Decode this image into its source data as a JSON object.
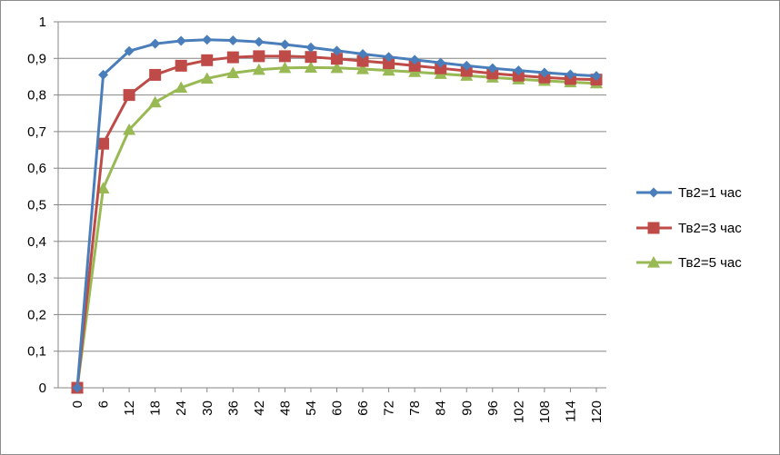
{
  "chart_data": {
    "type": "line",
    "title": "",
    "xlabel": "",
    "ylabel": "",
    "x": [
      0,
      6,
      12,
      18,
      24,
      30,
      36,
      42,
      48,
      54,
      60,
      66,
      72,
      78,
      84,
      90,
      96,
      102,
      108,
      114,
      120
    ],
    "x_tick_labels": [
      "0",
      "6",
      "12",
      "18",
      "24",
      "30",
      "36",
      "42",
      "48",
      "54",
      "60",
      "66",
      "72",
      "78",
      "84",
      "90",
      "96",
      "102",
      "108",
      "114",
      "120"
    ],
    "ylim": [
      0,
      1
    ],
    "y_ticks": [
      0,
      0.1,
      0.2,
      0.3,
      0.4,
      0.5,
      0.6,
      0.7,
      0.8,
      0.9,
      1
    ],
    "y_tick_labels": [
      "0",
      "0,1",
      "0,2",
      "0,3",
      "0,4",
      "0,5",
      "0,6",
      "0,7",
      "0,8",
      "0,9",
      "1"
    ],
    "grid": "horizontal",
    "legend_position": "right",
    "series": [
      {
        "name": "Тв2=1 час",
        "color": "#4a7ebb",
        "marker": "diamond",
        "values": [
          0,
          0.855,
          0.92,
          0.94,
          0.948,
          0.951,
          0.949,
          0.945,
          0.938,
          0.93,
          0.921,
          0.912,
          0.904,
          0.896,
          0.888,
          0.88,
          0.873,
          0.867,
          0.861,
          0.856,
          0.852
        ]
      },
      {
        "name": "Тв2=3 час",
        "color": "#be4b48",
        "marker": "square",
        "values": [
          0,
          0.667,
          0.8,
          0.855,
          0.88,
          0.895,
          0.903,
          0.906,
          0.906,
          0.904,
          0.899,
          0.893,
          0.887,
          0.88,
          0.873,
          0.866,
          0.859,
          0.853,
          0.848,
          0.844,
          0.842
        ]
      },
      {
        "name": "Тв2=5 час",
        "color": "#98b954",
        "marker": "triangle",
        "values": [
          0,
          0.545,
          0.705,
          0.78,
          0.82,
          0.845,
          0.86,
          0.869,
          0.874,
          0.875,
          0.874,
          0.871,
          0.867,
          0.863,
          0.858,
          0.853,
          0.848,
          0.843,
          0.839,
          0.835,
          0.832
        ]
      }
    ]
  }
}
